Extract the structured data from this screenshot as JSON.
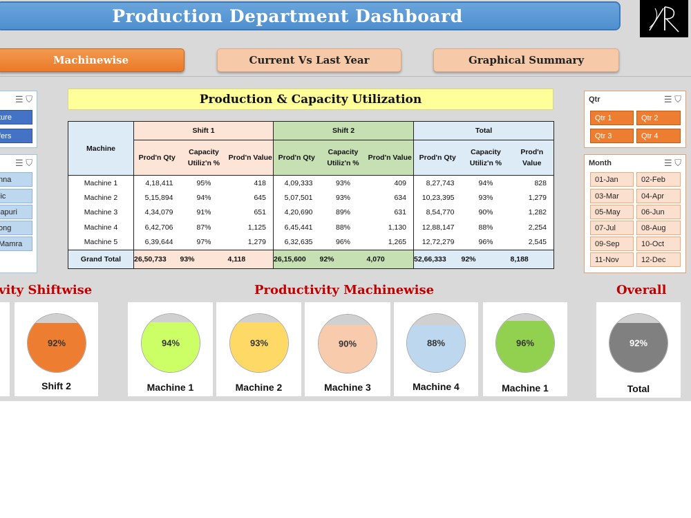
{
  "header": {
    "title": "Production Department Dashboard"
  },
  "nav": {
    "machinewise": "Machinewise",
    "current_vs_last": "Current Vs Last Year",
    "graphical_summary": "Graphical Summary"
  },
  "left_slicer_1": {
    "items": [
      "ture",
      "fers"
    ]
  },
  "left_slicer_2": {
    "items": [
      "nna",
      "lic",
      "lapuri",
      "ong",
      " Mamra"
    ]
  },
  "qtr_slicer": {
    "title": "Qtr",
    "items": [
      "Qtr 1",
      "Qtr 2",
      "Qtr 3",
      "Qtr 4"
    ]
  },
  "month_slicer": {
    "title": "Month",
    "items": [
      "01-Jan",
      "02-Feb",
      "03-Mar",
      "04-Apr",
      "05-May",
      "06-Jun",
      "07-Jul",
      "08-Aug",
      "09-Sep",
      "10-Oct",
      "11-Nov",
      "12-Dec"
    ]
  },
  "table": {
    "title": "Production  & Capacity Utilization",
    "machine_header": "Machine",
    "groups": [
      "Shift 1",
      "Shift 2",
      "Total"
    ],
    "sub_headers": {
      "qty": "Prod'n Qty",
      "util": "Capacity Utiliz'n %",
      "value": "Prod'n Value"
    },
    "rows": [
      {
        "name": "Machine 1",
        "s1_qty": "4,18,411",
        "s1_util": "95%",
        "s1_val": "418",
        "s2_qty": "4,09,333",
        "s2_util": "93%",
        "s2_val": "409",
        "t_qty": "8,27,743",
        "t_util": "94%",
        "t_val": "828"
      },
      {
        "name": "Machine 2",
        "s1_qty": "5,15,894",
        "s1_util": "94%",
        "s1_val": "645",
        "s2_qty": "5,07,501",
        "s2_util": "93%",
        "s2_val": "634",
        "t_qty": "10,23,395",
        "t_util": "93%",
        "t_val": "1,279"
      },
      {
        "name": "Machine 3",
        "s1_qty": "4,34,079",
        "s1_util": "91%",
        "s1_val": "651",
        "s2_qty": "4,20,690",
        "s2_util": "89%",
        "s2_val": "631",
        "t_qty": "8,54,770",
        "t_util": "90%",
        "t_val": "1,282"
      },
      {
        "name": "Machine 4",
        "s1_qty": "6,42,706",
        "s1_util": "87%",
        "s1_val": "1,125",
        "s2_qty": "6,45,441",
        "s2_util": "88%",
        "s2_val": "1,130",
        "t_qty": "12,88,147",
        "t_util": "88%",
        "t_val": "2,254"
      },
      {
        "name": "Machine 5",
        "s1_qty": "6,39,644",
        "s1_util": "97%",
        "s1_val": "1,279",
        "s2_qty": "6,32,635",
        "s2_util": "96%",
        "s2_val": "1,265",
        "t_qty": "12,72,279",
        "t_util": "96%",
        "t_val": "2,545"
      }
    ],
    "total": {
      "name": "Grand Total",
      "s1_qty": "26,50,733",
      "s1_util": "93%",
      "s1_val": "4,118",
      "s2_qty": "26,15,600",
      "s2_util": "92%",
      "s2_val": "4,070",
      "t_qty": "52,66,333",
      "t_util": "92%",
      "t_val": "8,188"
    }
  },
  "sections": {
    "shiftwise": "vity Shiftwise",
    "machinewise": "Productivity Machinewise",
    "overall": "Overall"
  },
  "gauges": [
    {
      "label": "Shift 2",
      "percent": "92%",
      "level": 0.85,
      "color": "#ed7d31"
    },
    {
      "label": "Machine 1",
      "percent": "94%",
      "level": 0.86,
      "color": "#ccff66"
    },
    {
      "label": "Machine 2",
      "percent": "93%",
      "level": 0.86,
      "color": "#ffd966"
    },
    {
      "label": "Machine 3",
      "percent": "90%",
      "level": 0.82,
      "color": "#f8cbad"
    },
    {
      "label": "Machine 4",
      "percent": "88%",
      "level": 0.81,
      "color": "#bdd7ee"
    },
    {
      "label": "Machine 1",
      "percent": "96%",
      "level": 0.88,
      "color": "#92d050"
    },
    {
      "label": "Total",
      "percent": "92%",
      "level": 0.85,
      "color": "#808080",
      "text_color": "#ffffff"
    }
  ]
}
